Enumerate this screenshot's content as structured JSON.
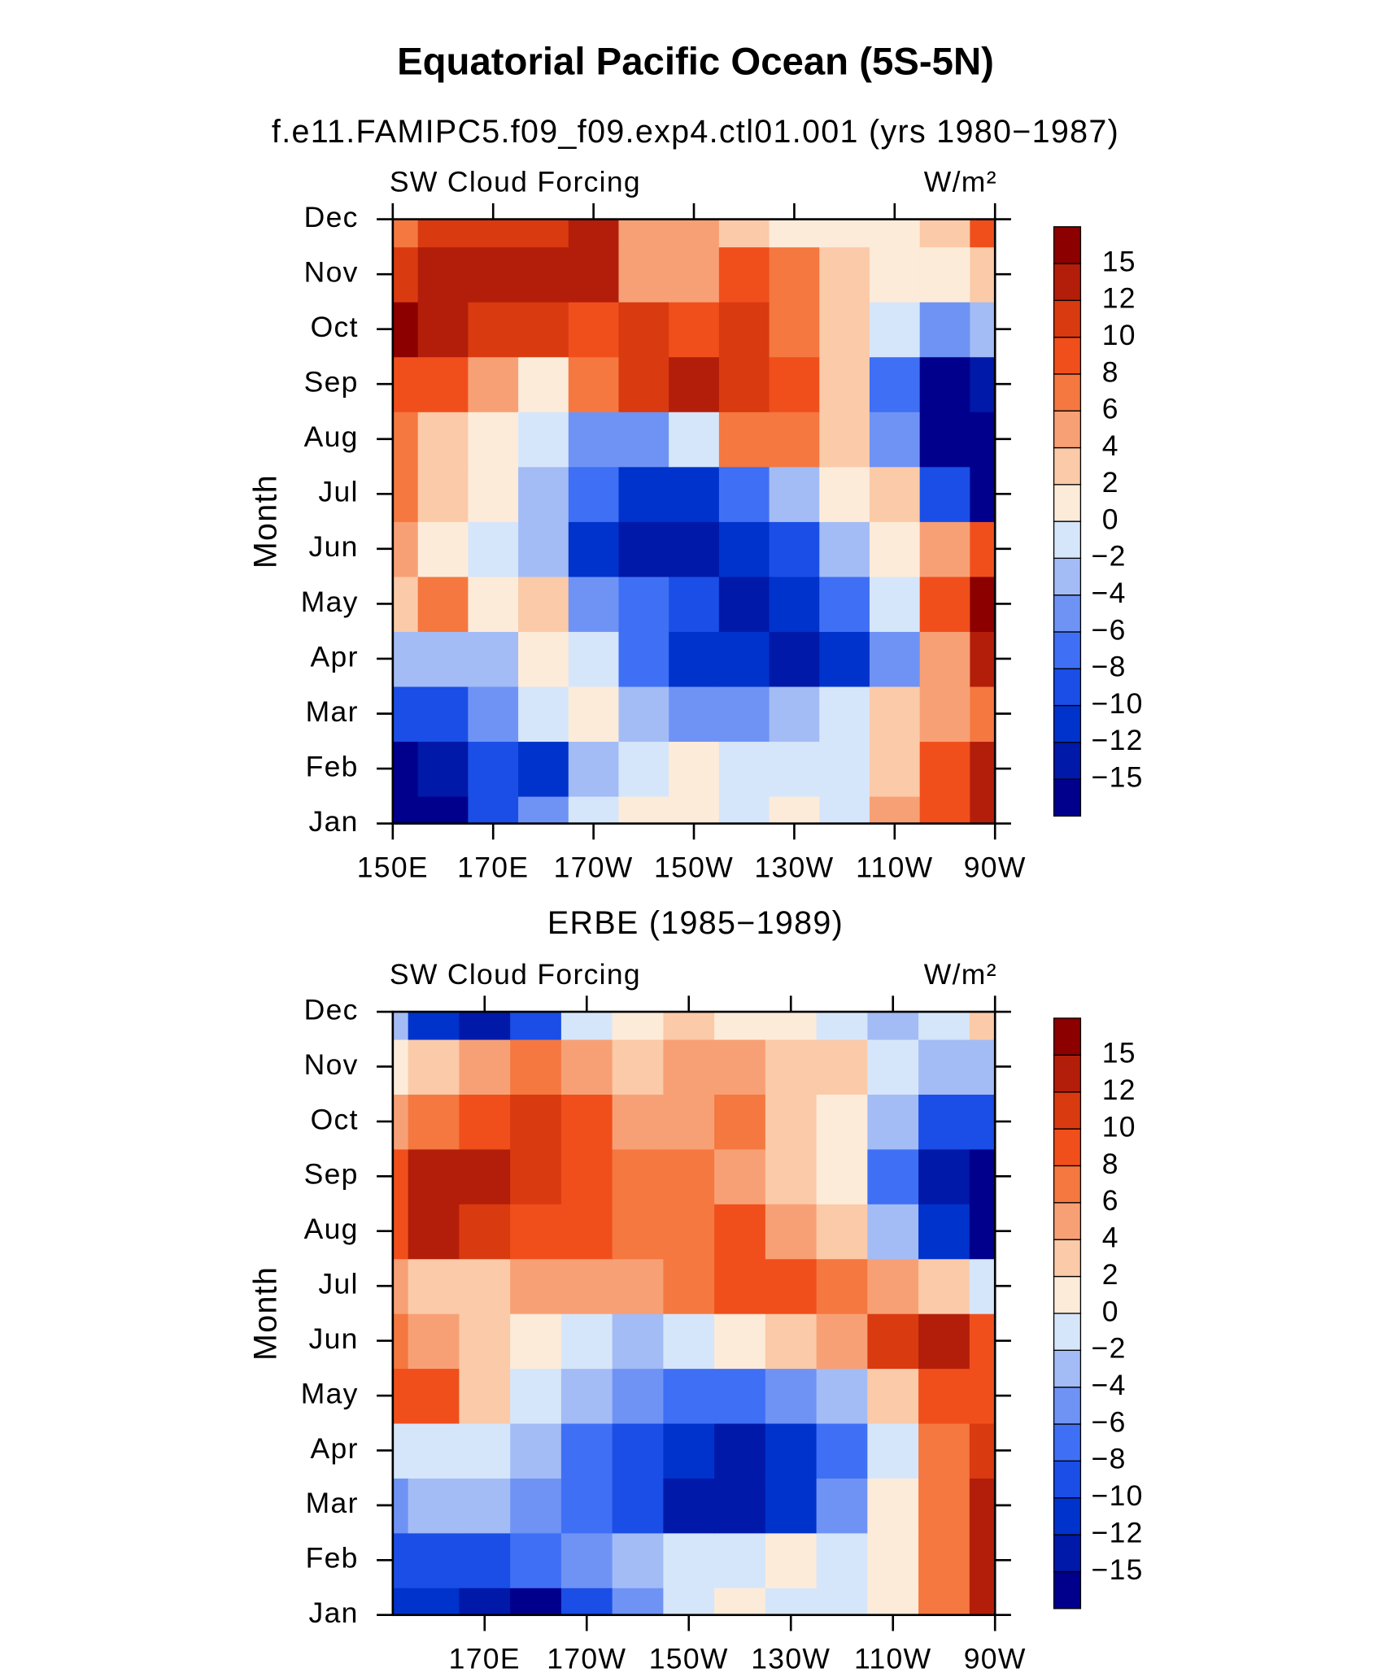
{
  "title": "Equatorial Pacific Ocean (5S-5N)",
  "chart_data": [
    {
      "type": "heatmap",
      "title": "f.e11.FAMIPC5.f09_f09.exp4.ctl01.001 (yrs 1980−1987)",
      "left_string": "SW Cloud Forcing",
      "right_string": "W/m²",
      "ylabel": "Month",
      "categories": [
        "Jan",
        "Feb",
        "Mar",
        "Apr",
        "May",
        "Jun",
        "Jul",
        "Aug",
        "Sep",
        "Oct",
        "Nov",
        "Dec"
      ],
      "x": [
        150,
        160,
        170,
        180,
        190,
        200,
        210,
        220,
        230,
        240,
        250,
        260,
        270
      ],
      "xlim": [
        150,
        270
      ],
      "xticks": [
        {
          "value": 150,
          "label": "150E"
        },
        {
          "value": 170,
          "label": "170E"
        },
        {
          "value": 190,
          "label": "170W"
        },
        {
          "value": 210,
          "label": "150W"
        },
        {
          "value": 230,
          "label": "130W"
        },
        {
          "value": 250,
          "label": "110W"
        },
        {
          "value": 270,
          "label": "90W"
        }
      ],
      "values": [
        [
          -16,
          -16,
          -10,
          -6,
          -1,
          1,
          0,
          -1,
          0,
          -1,
          4,
          8,
          12
        ],
        [
          -16,
          -14,
          -10,
          -11,
          -3,
          -1,
          1,
          -2,
          -1,
          -1,
          3,
          8,
          12
        ],
        [
          -10,
          -9,
          -6,
          -2,
          0,
          -3,
          -5,
          -6,
          -4,
          -2,
          2,
          4,
          6
        ],
        [
          -4,
          -3,
          -4,
          0,
          -2,
          -8,
          -11,
          -12,
          -13,
          -11,
          -6,
          4,
          14
        ],
        [
          2,
          6,
          0,
          3,
          -5,
          -7,
          -9,
          -14,
          -11,
          -7,
          -1,
          8,
          15
        ],
        [
          4,
          0,
          -2,
          -4,
          -11,
          -14,
          -14,
          -11,
          -9,
          -4,
          0,
          4,
          8
        ],
        [
          6,
          2,
          1,
          -4,
          -8,
          -11,
          -11,
          -8,
          -4,
          0,
          2,
          -10,
          -16
        ],
        [
          6,
          3,
          0,
          -2,
          -6,
          -6,
          -2,
          6,
          7,
          2,
          -6,
          -16,
          -16
        ],
        [
          9,
          8,
          4,
          0,
          6,
          10,
          12,
          10,
          8,
          2,
          -8,
          -16,
          -14
        ],
        [
          15,
          12,
          10,
          10,
          8,
          10,
          8,
          11,
          6,
          2,
          -2,
          -6,
          -4
        ],
        [
          10,
          12,
          13,
          12,
          12,
          4,
          4,
          8,
          6,
          2,
          1,
          0,
          3
        ],
        [
          7,
          10,
          10,
          10,
          12,
          5,
          4,
          3,
          1,
          0,
          1,
          3,
          8
        ]
      ],
      "levels": [
        {
          "value": -15,
          "label": "−15"
        },
        {
          "value": -12,
          "label": "−12"
        },
        {
          "value": -10,
          "label": "−10"
        },
        {
          "value": -8,
          "label": "−8"
        },
        {
          "value": -6,
          "label": "−6"
        },
        {
          "value": -4,
          "label": "−4"
        },
        {
          "value": -2,
          "label": "−2"
        },
        0,
        2,
        4,
        6,
        8,
        10,
        12,
        15
      ],
      "colors": [
        "#00008c",
        "#0019a8",
        "#0033cc",
        "#1a4ee6",
        "#3f6ff5",
        "#6f93f5",
        "#a3bcf5",
        "#d6e6fa",
        "#fdebd9",
        "#fbcaa8",
        "#f8a075",
        "#f47840",
        "#f04f1c",
        "#d93a10",
        "#b31e0a",
        "#8c0000"
      ]
    },
    {
      "type": "heatmap",
      "title": "ERBE (1985−1989)",
      "left_string": "SW Cloud Forcing",
      "right_string": "W/m²",
      "ylabel": "Month",
      "categories": [
        "Jan",
        "Feb",
        "Mar",
        "Apr",
        "May",
        "Jun",
        "Jul",
        "Aug",
        "Sep",
        "Oct",
        "Nov",
        "Dec"
      ],
      "x": [
        150,
        160,
        170,
        180,
        190,
        200,
        210,
        220,
        230,
        240,
        250,
        260,
        270
      ],
      "xlim": [
        152,
        270
      ],
      "xticks": [
        {
          "value": 170,
          "label": "170E"
        },
        {
          "value": 190,
          "label": "170W"
        },
        {
          "value": 210,
          "label": "150W"
        },
        {
          "value": 230,
          "label": "130W"
        },
        {
          "value": 250,
          "label": "110W"
        },
        {
          "value": 270,
          "label": "90W"
        }
      ],
      "values": [
        [
          -12,
          -12,
          -14,
          -16,
          -10,
          -6,
          -2,
          0,
          -1,
          -2,
          0,
          6,
          12
        ],
        [
          -10,
          -9,
          -9,
          -8,
          -6,
          -3,
          -2,
          -1,
          0,
          -2,
          1,
          6,
          12
        ],
        [
          -5,
          -4,
          -4,
          -6,
          -8,
          -10,
          -13,
          -14,
          -12,
          -6,
          0,
          6,
          14
        ],
        [
          -2,
          -1,
          -2,
          -4,
          -8,
          -9,
          -11,
          -14,
          -12,
          -8,
          -1,
          6,
          10
        ],
        [
          8,
          8,
          2,
          -2,
          -4,
          -6,
          -8,
          -8,
          -6,
          -3,
          2,
          8,
          8
        ],
        [
          6,
          5,
          3,
          1,
          -2,
          -3,
          -2,
          0,
          2,
          4,
          10,
          12,
          8
        ],
        [
          4,
          2,
          2,
          4,
          4,
          4,
          6,
          8,
          8,
          6,
          4,
          2,
          -2
        ],
        [
          8,
          12,
          10,
          9,
          8,
          6,
          6,
          8,
          5,
          2,
          -4,
          -12,
          -16
        ],
        [
          9,
          12,
          12,
          10,
          8,
          6,
          6,
          4,
          2,
          0,
          -8,
          -14,
          -16
        ],
        [
          4,
          6,
          8,
          10,
          8,
          4,
          4,
          6,
          3,
          0,
          -4,
          -10,
          -10
        ],
        [
          0,
          2,
          4,
          6,
          4,
          2,
          4,
          4,
          2,
          2,
          -2,
          -4,
          -4
        ],
        [
          -4,
          -12,
          -14,
          -10,
          -2,
          0,
          2,
          0,
          0,
          -1,
          -3,
          -2,
          2
        ]
      ],
      "levels": [
        {
          "value": -15,
          "label": "−15"
        },
        {
          "value": -12,
          "label": "−12"
        },
        {
          "value": -10,
          "label": "−10"
        },
        {
          "value": -8,
          "label": "−8"
        },
        {
          "value": -6,
          "label": "−6"
        },
        {
          "value": -4,
          "label": "−4"
        },
        {
          "value": -2,
          "label": "−2"
        },
        0,
        2,
        4,
        6,
        8,
        10,
        12,
        15
      ],
      "colors": [
        "#00008c",
        "#0019a8",
        "#0033cc",
        "#1a4ee6",
        "#3f6ff5",
        "#6f93f5",
        "#a3bcf5",
        "#d6e6fa",
        "#fdebd9",
        "#fbcaa8",
        "#f8a075",
        "#f47840",
        "#f04f1c",
        "#d93a10",
        "#b31e0a",
        "#8c0000"
      ]
    }
  ]
}
